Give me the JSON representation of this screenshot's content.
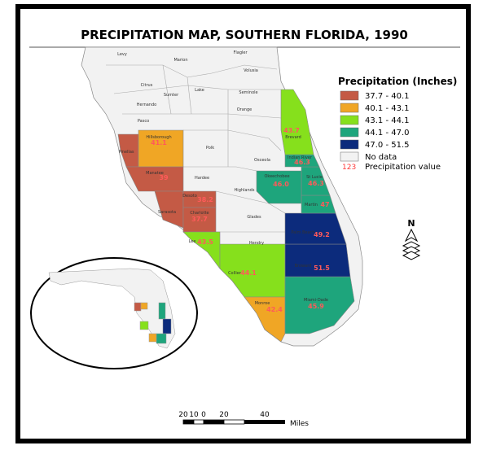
{
  "title": "PRECIPITATION MAP, SOUTHERN FLORIDA, 1990",
  "legend": {
    "title": "Precipitation (Inches)",
    "items": [
      {
        "label": "37.7 - 40.1",
        "color": "#c45a45"
      },
      {
        "label": "40.1 - 43.1",
        "color": "#f0a625"
      },
      {
        "label": "43.1 - 44.1",
        "color": "#86e01c"
      },
      {
        "label": "44.1 - 47.0",
        "color": "#1ea57c"
      },
      {
        "label": "47.0 - 51.5",
        "color": "#0c2b7c"
      }
    ],
    "no_data": {
      "label": "No data",
      "color": "#f2f2f2"
    },
    "value_sample": "123",
    "value_desc": "Precipitation value"
  },
  "counties": [
    {
      "name": "Pinellas",
      "value": null,
      "class": 0
    },
    {
      "name": "Hillsborough",
      "value": "41.1",
      "class": 1
    },
    {
      "name": "Manatee",
      "value": "39",
      "class": 0
    },
    {
      "name": "Sarasota",
      "value": null,
      "class": 0
    },
    {
      "name": "Desoto",
      "value": "38.2",
      "class": 0
    },
    {
      "name": "Charlotte",
      "value": "37.7",
      "class": 0
    },
    {
      "name": "Lee",
      "value": "43.5",
      "class": 2
    },
    {
      "name": "Collier",
      "value": "44.1",
      "class": 2
    },
    {
      "name": "Monroe",
      "value": "42.4",
      "class": 1
    },
    {
      "name": "Miami-Dade",
      "value": "45.9",
      "class": 3
    },
    {
      "name": "Broward",
      "value": "51.5",
      "class": 4
    },
    {
      "name": "Palm Beach",
      "value": "49.2",
      "class": 4
    },
    {
      "name": "Martin",
      "value": "47",
      "class": 3
    },
    {
      "name": "St Lucie",
      "value": "46.3",
      "class": 3
    },
    {
      "name": "Okeechobee",
      "value": "46.0",
      "class": 3
    },
    {
      "name": "Indian River",
      "value": "46.3",
      "class": 3
    },
    {
      "name": "Brevard",
      "value": "43.7",
      "class": 2
    }
  ],
  "other_counties": [
    "Levy",
    "Marion",
    "Flagler",
    "Volusia",
    "Citrus",
    "Sumter",
    "Lake",
    "Seminole",
    "Hernando",
    "Orange",
    "Pasco",
    "Polk",
    "Osceola",
    "Hardee",
    "Highlands",
    "Glades",
    "Hendry"
  ],
  "scale": {
    "ticks": [
      "20",
      "10",
      "0",
      "20",
      "40"
    ],
    "unit": "Miles"
  },
  "north": "N"
}
